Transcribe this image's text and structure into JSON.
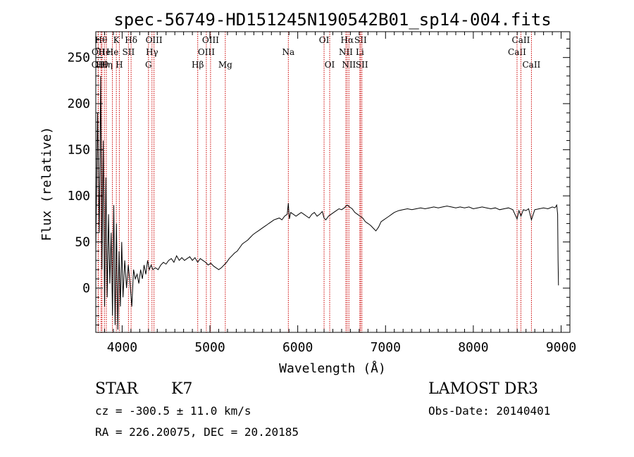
{
  "chart_data": {
    "type": "line",
    "title": "spec-56749-HD151245N190542B01_sp14-004.fits",
    "xlabel": "Wavelength (Å)",
    "ylabel": "Flux (relative)",
    "xlim": [
      3700,
      9100
    ],
    "ylim": [
      -48,
      278
    ],
    "x_ticks": [
      4000,
      5000,
      6000,
      7000,
      8000,
      9000
    ],
    "y_ticks": [
      0,
      50,
      100,
      150,
      200,
      250
    ],
    "line_color": "#000000",
    "marker_color": "#cc0000",
    "series": [
      {
        "x": [
          3700,
          3720,
          3740,
          3755,
          3770,
          3785,
          3800,
          3815,
          3830,
          3845,
          3860,
          3875,
          3890,
          3905,
          3920,
          3935,
          3950,
          3965,
          3980,
          3995,
          4010,
          4030,
          4050,
          4070,
          4090,
          4110,
          4130,
          4150,
          4170,
          4190,
          4210,
          4230,
          4250,
          4270,
          4290,
          4310,
          4330,
          4350,
          4380,
          4410,
          4440,
          4470,
          4500,
          4530,
          4560,
          4590,
          4620,
          4650,
          4680,
          4710,
          4740,
          4770,
          4800,
          4830,
          4860,
          4890,
          4920,
          4950,
          4980,
          5010,
          5040,
          5070,
          5100,
          5130,
          5160,
          5190,
          5220,
          5250,
          5280,
          5310,
          5340,
          5370,
          5400,
          5430,
          5460,
          5490,
          5520,
          5550,
          5580,
          5610,
          5640,
          5670,
          5700,
          5730,
          5760,
          5790,
          5820,
          5850,
          5880,
          5893,
          5905,
          5920,
          5950,
          5980,
          6010,
          6040,
          6070,
          6100,
          6130,
          6160,
          6190,
          6220,
          6250,
          6280,
          6300,
          6320,
          6350,
          6380,
          6410,
          6440,
          6470,
          6500,
          6530,
          6563,
          6590,
          6620,
          6650,
          6680,
          6710,
          6740,
          6770,
          6800,
          6830,
          6860,
          6890,
          6920,
          6950,
          6980,
          7010,
          7040,
          7070,
          7100,
          7150,
          7200,
          7250,
          7300,
          7350,
          7400,
          7450,
          7500,
          7550,
          7600,
          7650,
          7700,
          7750,
          7800,
          7850,
          7900,
          7950,
          8000,
          8050,
          8100,
          8150,
          8200,
          8250,
          8300,
          8350,
          8400,
          8450,
          8498,
          8520,
          8542,
          8570,
          8600,
          8630,
          8662,
          8700,
          8750,
          8800,
          8850,
          8900,
          8930,
          8950,
          8960,
          8965,
          8970
        ],
        "y": [
          40,
          190,
          60,
          230,
          20,
          160,
          -20,
          120,
          -10,
          80,
          5,
          60,
          -30,
          90,
          -40,
          70,
          -45,
          40,
          -20,
          50,
          -10,
          30,
          0,
          25,
          5,
          -20,
          20,
          10,
          15,
          5,
          20,
          10,
          25,
          15,
          30,
          20,
          25,
          20,
          22,
          20,
          25,
          28,
          26,
          30,
          32,
          28,
          35,
          30,
          33,
          30,
          32,
          34,
          30,
          33,
          28,
          32,
          30,
          28,
          25,
          27,
          24,
          22,
          20,
          22,
          25,
          28,
          32,
          35,
          38,
          40,
          44,
          48,
          50,
          52,
          55,
          58,
          60,
          62,
          64,
          66,
          68,
          70,
          72,
          74,
          75,
          76,
          74,
          78,
          80,
          92,
          75,
          82,
          80,
          78,
          80,
          82,
          80,
          78,
          76,
          80,
          82,
          78,
          80,
          83,
          76,
          74,
          78,
          80,
          82,
          84,
          86,
          85,
          87,
          90,
          88,
          86,
          82,
          80,
          78,
          76,
          72,
          70,
          68,
          65,
          62,
          66,
          72,
          74,
          76,
          78,
          80,
          82,
          84,
          85,
          86,
          85,
          86,
          87,
          86,
          87,
          88,
          87,
          88,
          89,
          88,
          87,
          88,
          87,
          88,
          86,
          87,
          88,
          87,
          86,
          87,
          85,
          86,
          87,
          85,
          75,
          84,
          78,
          85,
          84,
          86,
          74,
          85,
          86,
          87,
          86,
          88,
          87,
          90,
          80,
          30,
          3
        ]
      }
    ],
    "line_markers": [
      {
        "x": 3727,
        "label": "OII",
        "row": 3
      },
      {
        "x": 3729,
        "label": "OII",
        "row": 2
      },
      {
        "x": 3760,
        "label": "Hθ",
        "row": 1
      },
      {
        "x": 3771,
        "label": "Hθ",
        "row": 3
      },
      {
        "x": 3798,
        "label": "He",
        "row": 2
      },
      {
        "x": 3820,
        "label": "Hη",
        "row": 3
      },
      {
        "x": 3889,
        "label": "He",
        "row": 2
      },
      {
        "x": 3934,
        "label": "K",
        "row": 1
      },
      {
        "x": 3968,
        "label": "H",
        "row": 3
      },
      {
        "x": 4072,
        "label": "SII",
        "row": 2
      },
      {
        "x": 4102,
        "label": "Hδ",
        "row": 1
      },
      {
        "x": 4300,
        "label": "G",
        "row": 3
      },
      {
        "x": 4340,
        "label": "Hγ",
        "row": 2
      },
      {
        "x": 4363,
        "label": "OIII",
        "row": 1
      },
      {
        "x": 4861,
        "label": "Hβ",
        "row": 3
      },
      {
        "x": 4959,
        "label": "OIII",
        "row": 2
      },
      {
        "x": 5007,
        "label": "OIII",
        "row": 1
      },
      {
        "x": 5175,
        "label": "Mg",
        "row": 3
      },
      {
        "x": 5893,
        "label": "Na",
        "row": 2
      },
      {
        "x": 6300,
        "label": "OI",
        "row": 1
      },
      {
        "x": 6364,
        "label": "OI",
        "row": 3
      },
      {
        "x": 6548,
        "label": "NII",
        "row": 2
      },
      {
        "x": 6563,
        "label": "Hα",
        "row": 1
      },
      {
        "x": 6583,
        "label": "NII",
        "row": 3
      },
      {
        "x": 6708,
        "label": "Li",
        "row": 2
      },
      {
        "x": 6716,
        "label": "SII",
        "row": 1
      },
      {
        "x": 6731,
        "label": "SII",
        "row": 3
      },
      {
        "x": 8498,
        "label": "CaII",
        "row": 2
      },
      {
        "x": 8542,
        "label": "CaII",
        "row": 1
      },
      {
        "x": 8662,
        "label": "CaII",
        "row": 3
      }
    ]
  },
  "info": {
    "object_class": "STAR",
    "subclass": "K7",
    "survey": "LAMOST DR3",
    "cz": "cz = -300.5 ± 11.0 km/s",
    "obs_date": "Obs-Date: 20140401",
    "coords": "RA = 226.20075, DEC =  20.20185"
  }
}
